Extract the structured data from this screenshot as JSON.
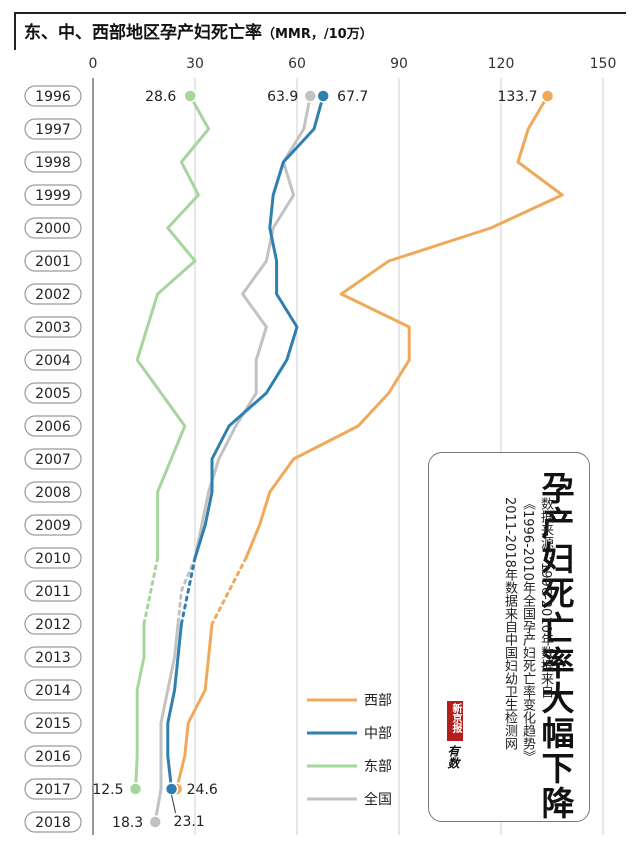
{
  "title": "东、中、西部地区孕产妇死亡率",
  "unit": "（MMR，/10万）",
  "infobox": {
    "big_title": "孕产妇死亡率大幅下降",
    "source_line1": "数据来源：1996-2010年数据来自",
    "source_line2": "《1996-2010年全国孕产妇死亡率变化趋势》",
    "source_line3": "2011-2018年数据来自中国妇幼卫生检测网",
    "logo_red_text": "新京报",
    "logo_script_text": "有数"
  },
  "chart_data": {
    "type": "line",
    "orientation": "horizontal-values, years-vertical",
    "title": "东、中、西部地区孕产妇死亡率",
    "unit": "MMR，/10万",
    "x_ticks": [
      0,
      30,
      60,
      90,
      120,
      150
    ],
    "xlim": [
      0,
      150
    ],
    "grid": true,
    "categories": [
      "1996",
      "1997",
      "1998",
      "1999",
      "2000",
      "2001",
      "2002",
      "2003",
      "2004",
      "2005",
      "2006",
      "2007",
      "2008",
      "2009",
      "2010",
      "2011",
      "2012",
      "2013",
      "2014",
      "2015",
      "2016",
      "2017",
      "2018"
    ],
    "legend_position": "bottom-center",
    "dashed_interval": [
      "2010",
      "2012"
    ],
    "series": [
      {
        "name": "西部",
        "color": "#f0a95a",
        "values": [
          133.7,
          128,
          125,
          138,
          117,
          87,
          73,
          93,
          93,
          87,
          78,
          59,
          52,
          49,
          45,
          40,
          35,
          34,
          33,
          28,
          27,
          24.6,
          null
        ]
      },
      {
        "name": "中部",
        "color": "#2f7fb0",
        "values": [
          67.7,
          65,
          56,
          53,
          52,
          54,
          54,
          60,
          57,
          51,
          40,
          35,
          35,
          33,
          30,
          28,
          26,
          25,
          24,
          22,
          22,
          23.1,
          null
        ]
      },
      {
        "name": "东部",
        "color": "#a6d69d",
        "values": [
          28.6,
          34,
          26,
          31,
          22,
          30,
          19,
          16,
          13,
          20,
          27,
          23,
          19,
          19,
          19,
          17,
          15,
          15,
          13,
          13,
          13,
          12.5,
          null
        ]
      },
      {
        "name": "全国",
        "color": "#c2c2c2",
        "values": [
          63.9,
          62,
          56,
          59,
          53,
          51,
          44,
          51,
          48,
          48,
          42,
          37,
          34,
          32,
          30,
          26,
          25,
          24,
          22,
          20,
          20,
          20,
          18.3
        ]
      }
    ],
    "data_labels": [
      {
        "series": "东部",
        "year": "1996",
        "text": "28.6"
      },
      {
        "series": "全国",
        "year": "1996",
        "text": "63.9"
      },
      {
        "series": "中部",
        "year": "1996",
        "text": "67.7"
      },
      {
        "series": "西部",
        "year": "1996",
        "text": "133.7"
      },
      {
        "series": "东部",
        "year": "2017",
        "text": "12.5"
      },
      {
        "series": "西部",
        "year": "2017",
        "text": "24.6"
      },
      {
        "series": "中部",
        "year": "2017",
        "text": "23.1"
      },
      {
        "series": "全国",
        "year": "2018",
        "text": "18.3"
      }
    ]
  }
}
